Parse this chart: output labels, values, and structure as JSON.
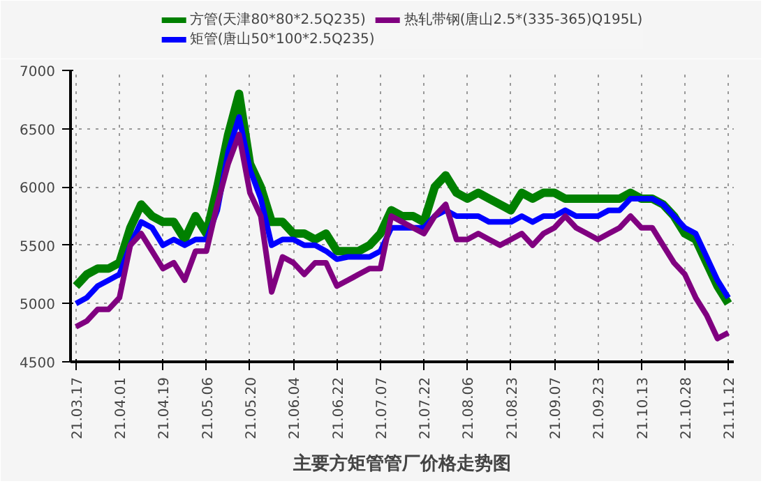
{
  "chart_data": {
    "type": "line",
    "title": "主要方矩管管厂价格走势图",
    "categories": [
      "21.03.17",
      null,
      null,
      null,
      "21.04.01",
      null,
      null,
      null,
      "21.04.19",
      null,
      null,
      null,
      "21.05.06",
      null,
      null,
      null,
      "21.05.20",
      null,
      null,
      null,
      "21.06.04",
      null,
      null,
      null,
      "21.06.22",
      null,
      null,
      null,
      "21.07.07",
      null,
      null,
      null,
      "21.07.22",
      null,
      null,
      null,
      "21.08.06",
      null,
      null,
      null,
      "21.08.23",
      null,
      null,
      null,
      "21.09.07",
      null,
      null,
      null,
      "21.09.23",
      null,
      null,
      null,
      "21.10.13",
      null,
      null,
      null,
      "21.10.28",
      null,
      null,
      null,
      "21.11.12"
    ],
    "series": [
      {
        "name": "方管(天津80*80*2.5Q235)",
        "color": "#008000",
        "values": [
          5150,
          5250,
          5300,
          5300,
          5350,
          5650,
          5850,
          5750,
          5700,
          5700,
          5550,
          5750,
          5600,
          6000,
          6450,
          6800,
          6200,
          6000,
          5700,
          5700,
          5600,
          5600,
          5550,
          5600,
          5450,
          5450,
          5450,
          5500,
          5600,
          5800,
          5750,
          5750,
          5700,
          6000,
          6100,
          5950,
          5900,
          5950,
          5900,
          5850,
          5800,
          5950,
          5900,
          5950,
          5950,
          5900,
          5900,
          5900,
          5900,
          5900,
          5900,
          5950,
          5900,
          5900,
          5850,
          5750,
          5600,
          5550,
          5350,
          5150,
          5000
        ]
      },
      {
        "name": "矩管(唐山50*100*2.5Q235)",
        "color": "#0000ff",
        "values": [
          5000,
          5050,
          5150,
          5200,
          5250,
          5500,
          5700,
          5650,
          5500,
          5550,
          5500,
          5550,
          5550,
          5800,
          6300,
          6600,
          6150,
          5900,
          5500,
          5550,
          5550,
          5500,
          5500,
          5450,
          5380,
          5400,
          5400,
          5400,
          5450,
          5650,
          5650,
          5650,
          5650,
          5750,
          5800,
          5750,
          5750,
          5750,
          5700,
          5700,
          5700,
          5750,
          5700,
          5750,
          5750,
          5800,
          5750,
          5750,
          5750,
          5800,
          5800,
          5900,
          5900,
          5900,
          5850,
          5750,
          5650,
          5600,
          5400,
          5200,
          5050
        ]
      },
      {
        "name": "热轧带钢(唐山2.5*(335-365)Q195L)",
        "color": "#800080",
        "values": [
          4800,
          4850,
          4950,
          4950,
          5050,
          5500,
          5600,
          5450,
          5300,
          5350,
          5200,
          5450,
          5450,
          5850,
          6200,
          6450,
          5950,
          5750,
          5100,
          5400,
          5350,
          5250,
          5350,
          5350,
          5150,
          5200,
          5250,
          5300,
          5300,
          5750,
          5700,
          5650,
          5600,
          5750,
          5850,
          5550,
          5550,
          5600,
          5550,
          5500,
          5550,
          5600,
          5500,
          5600,
          5650,
          5750,
          5650,
          5600,
          5550,
          5600,
          5650,
          5750,
          5650,
          5650,
          5500,
          5350,
          5250,
          5050,
          4900,
          4700,
          4750
        ]
      }
    ],
    "ylim": [
      4500,
      7000
    ],
    "yticks": [
      4500,
      5000,
      5500,
      6000,
      6500,
      7000
    ],
    "grid": true,
    "legend": "top",
    "marker": "none",
    "line_style": "solid"
  }
}
